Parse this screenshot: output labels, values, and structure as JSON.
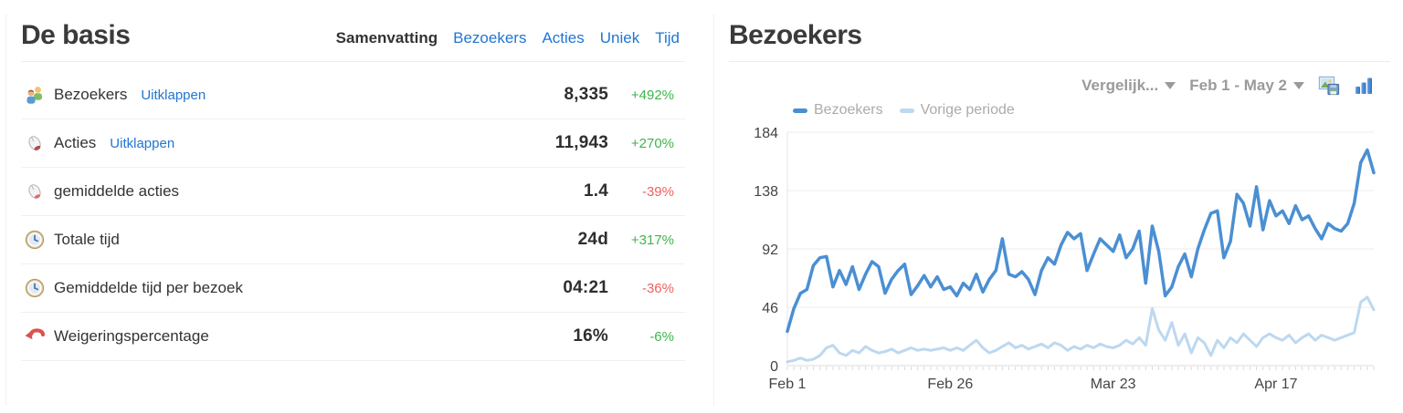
{
  "left_panel": {
    "title": "De basis",
    "tabs": [
      {
        "label": "Samenvatting",
        "active": true
      },
      {
        "label": "Bezoekers",
        "active": false
      },
      {
        "label": "Acties",
        "active": false
      },
      {
        "label": "Uniek",
        "active": false
      },
      {
        "label": "Tijd",
        "active": false
      }
    ],
    "rows": [
      {
        "icon": "visitors-icon",
        "label": "Bezoekers",
        "link": "Uitklappen",
        "value": "8,335",
        "delta": "+492%",
        "delta_color": "#3fb44b"
      },
      {
        "icon": "mouse-icon",
        "label": "Acties",
        "link": "Uitklappen",
        "value": "11,943",
        "delta": "+270%",
        "delta_color": "#3fb44b"
      },
      {
        "icon": "mouse-icon",
        "label": "gemiddelde acties",
        "value": "1.4",
        "delta": "-39%",
        "delta_color": "#ef5f5f"
      },
      {
        "icon": "clock-icon",
        "label": "Totale tijd",
        "value": "24d",
        "delta": "+317%",
        "delta_color": "#3fb44b"
      },
      {
        "icon": "clock-icon",
        "label": "Gemiddelde tijd per bezoek",
        "value": "04:21",
        "delta": "-36%",
        "delta_color": "#ef5f5f"
      },
      {
        "icon": "bounce-icon",
        "label": "Weigeringspercentage",
        "value": "16%",
        "delta": "-6%",
        "delta_color": "#3fb44b"
      }
    ]
  },
  "right_panel": {
    "title": "Bezoekers",
    "toolbar": {
      "compare_label": "Vergelijk...",
      "date_range": "Feb 1 - May 2"
    },
    "legend": [
      {
        "label": "Bezoekers",
        "color": "#4a8fd3"
      },
      {
        "label": "Vorige periode",
        "color": "#bdd8f0"
      }
    ]
  },
  "chart_data": {
    "type": "line",
    "title": "Bezoekers",
    "xlabel": "",
    "ylabel": "",
    "x_range": [
      "Feb 1",
      "May 2"
    ],
    "x_tick_labels": [
      "Feb 1",
      "Feb 26",
      "Mar 23",
      "Apr 17"
    ],
    "x_tick_positions": [
      0,
      25,
      50,
      75
    ],
    "ylim": [
      0,
      184
    ],
    "y_ticks": [
      0,
      46,
      92,
      138,
      184
    ],
    "grid": "horizontal",
    "legend_position": "top-left",
    "series": [
      {
        "name": "Bezoekers",
        "color": "#4a8fd3",
        "width": 3.5,
        "values": [
          27,
          45,
          57,
          60,
          79,
          85,
          86,
          62,
          75,
          64,
          78,
          60,
          72,
          82,
          78,
          57,
          68,
          75,
          80,
          56,
          63,
          71,
          62,
          70,
          60,
          62,
          55,
          65,
          60,
          72,
          58,
          68,
          75,
          100,
          72,
          70,
          74,
          68,
          56,
          75,
          85,
          80,
          95,
          105,
          100,
          104,
          75,
          88,
          100,
          95,
          90,
          103,
          85,
          92,
          106,
          65,
          110,
          90,
          55,
          62,
          78,
          88,
          70,
          92,
          107,
          120,
          122,
          85,
          98,
          135,
          128,
          110,
          141,
          107,
          130,
          118,
          122,
          112,
          126,
          115,
          118,
          108,
          100,
          112,
          108,
          106,
          112,
          128,
          160,
          170,
          152
        ]
      },
      {
        "name": "Vorige periode",
        "color": "#bdd8f0",
        "width": 3,
        "values": [
          3,
          4,
          6,
          4,
          5,
          8,
          14,
          16,
          10,
          8,
          12,
          10,
          15,
          12,
          10,
          11,
          13,
          10,
          12,
          14,
          12,
          13,
          12,
          13,
          14,
          12,
          14,
          12,
          16,
          20,
          14,
          10,
          12,
          15,
          18,
          14,
          16,
          13,
          15,
          17,
          14,
          18,
          16,
          12,
          15,
          13,
          16,
          14,
          17,
          15,
          14,
          16,
          20,
          17,
          22,
          16,
          45,
          28,
          20,
          34,
          16,
          25,
          10,
          22,
          18,
          8,
          20,
          14,
          22,
          18,
          25,
          20,
          15,
          22,
          25,
          22,
          20,
          24,
          18,
          22,
          25,
          20,
          24,
          22,
          20,
          22,
          24,
          26,
          50,
          54,
          44
        ]
      }
    ]
  }
}
